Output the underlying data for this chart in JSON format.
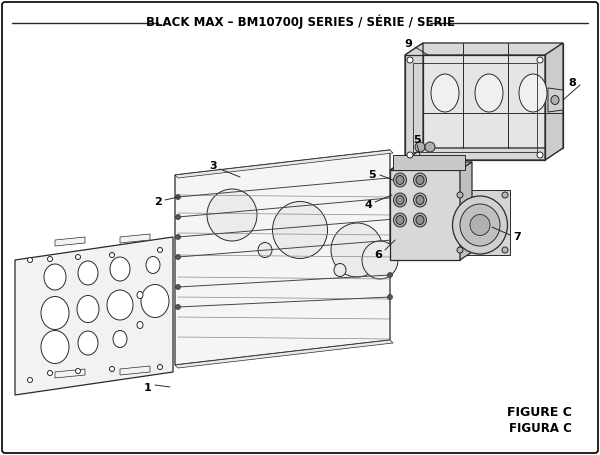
{
  "title": "BLACK MAX – BM10700J SERIES / SÉRIE / SERIE",
  "figure_label": "FIGURE C",
  "figura_label": "FIGURA C",
  "bg_color": "#ffffff",
  "line_color": "#2a2a2a",
  "face_color": "#f8f8f8",
  "title_fontsize": 8.5,
  "label_fontsize": 8.0
}
